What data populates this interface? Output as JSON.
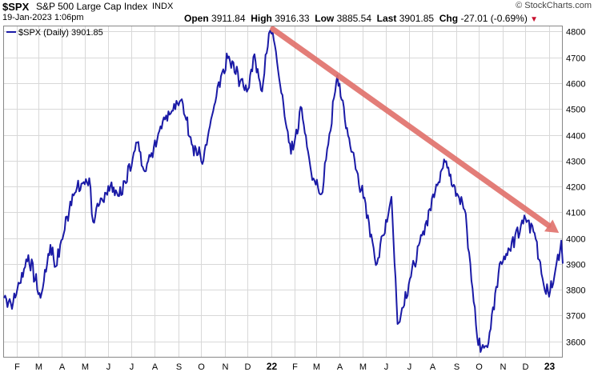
{
  "header": {
    "symbol": "$SPX",
    "name": "S&P 500 Large Cap Index",
    "exchange": "INDX",
    "watermark": "© StockCharts.com",
    "date": "19-Jan-2023 1:06pm",
    "open_label": "Open",
    "open_value": "3911.84",
    "high_label": "High",
    "high_value": "3916.33",
    "low_label": "Low",
    "low_value": "3885.54",
    "last_label": "Last",
    "last_value": "3901.85",
    "chg_label": "Chg",
    "chg_value": "-27.01 (-0.69%)",
    "chg_icon": "down-triangle-icon"
  },
  "colors": {
    "price_line": "#1a1aa6",
    "trend_arrow": "#e0706a",
    "grid": "#d8d8d8",
    "change_down": "#c8102e"
  },
  "chart_data": {
    "type": "line",
    "title": "",
    "legend": [
      {
        "name": "$SPX (Daily) 3901.85",
        "color": "#1a1aa6"
      }
    ],
    "legend_position": "top-left",
    "ylim": [
      3540,
      4820
    ],
    "y_ticks": [
      3600,
      3700,
      3800,
      3900,
      4000,
      4100,
      4200,
      4300,
      4400,
      4500,
      4600,
      4700,
      4800
    ],
    "y_axis_side": "right",
    "grid": true,
    "x_ticks": [
      "F",
      "M",
      "A",
      "M",
      "J",
      "J",
      "A",
      "S",
      "O",
      "N",
      "D",
      "22",
      "F",
      "M",
      "A",
      "M",
      "J",
      "J",
      "A",
      "S",
      "O",
      "N",
      "D",
      "23"
    ],
    "x_range": [
      "2021-01-15",
      "2023-01-19"
    ],
    "series": [
      {
        "name": "$SPX (Daily) 3901.85",
        "x": [
          "2021-01-15",
          "2021-01-27",
          "2021-02-16",
          "2021-03-04",
          "2021-03-17",
          "2021-03-24",
          "2021-04-15",
          "2021-05-07",
          "2021-05-12",
          "2021-06-01",
          "2021-06-18",
          "2021-07-09",
          "2021-07-19",
          "2021-08-13",
          "2021-08-31",
          "2021-09-07",
          "2021-09-20",
          "2021-10-04",
          "2021-10-21",
          "2021-11-05",
          "2021-11-30",
          "2021-12-10",
          "2021-12-20",
          "2021-12-29",
          "2022-01-03",
          "2022-01-27",
          "2022-02-10",
          "2022-02-24",
          "2022-03-08",
          "2022-03-29",
          "2022-04-12",
          "2022-05-02",
          "2022-05-20",
          "2022-06-08",
          "2022-06-16",
          "2022-07-08",
          "2022-08-16",
          "2022-09-12",
          "2022-09-30",
          "2022-10-12",
          "2022-10-28",
          "2022-11-10",
          "2022-12-01",
          "2022-12-13",
          "2022-12-28",
          "2023-01-05",
          "2023-01-17",
          "2023-01-19"
        ],
        "values": [
          3768,
          3750,
          3934,
          3768,
          3974,
          3890,
          4170,
          4232,
          4063,
          4202,
          4166,
          4370,
          4258,
          4468,
          4522,
          4520,
          4358,
          4300,
          4549,
          4697,
          4567,
          4712,
          4568,
          4793,
          4796,
          4326,
          4504,
          4225,
          4170,
          4631,
          4397,
          4155,
          3901,
          4160,
          3667,
          3899,
          4305,
          4110,
          3585,
          3577,
          3901,
          3956,
          4076,
          4019,
          3783,
          3808,
          3990,
          3901
        ]
      }
    ],
    "annotations": [
      {
        "type": "arrow",
        "from": [
          "2022-01-03",
          4810
        ],
        "to": [
          "2023-01-14",
          4020
        ]
      }
    ]
  }
}
